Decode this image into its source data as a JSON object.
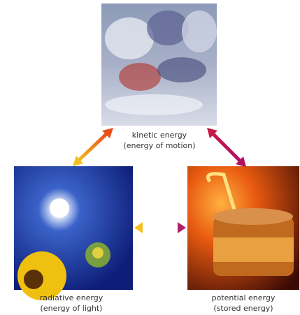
{
  "nodes": [
    {
      "label": "kinetic energy",
      "sublabel": "(energy of motion)"
    },
    {
      "label": "radiative energy",
      "sublabel": "(energy of light)"
    },
    {
      "label": "potential energy",
      "sublabel": "(stored energy)"
    }
  ]
}
